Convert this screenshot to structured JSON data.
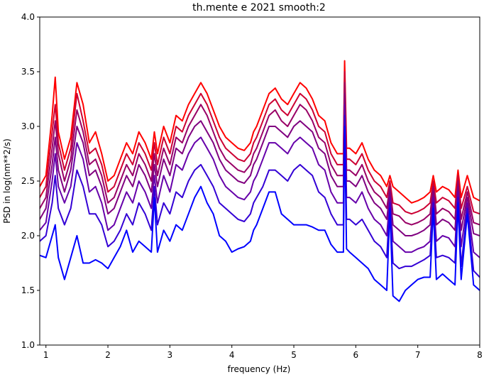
{
  "chart_data": {
    "type": "line",
    "title": "th.mente e 2021 smooth:2",
    "xlabel": "frequency (Hz)",
    "ylabel": "PSD in log(nm**2/s)",
    "xlim": [
      0.9,
      8.0
    ],
    "ylim": [
      1.0,
      4.0
    ],
    "xticks": [
      1,
      2,
      3,
      4,
      5,
      6,
      7,
      8
    ],
    "yticks": [
      1.0,
      1.5,
      2.0,
      2.5,
      3.0,
      3.5,
      4.0
    ],
    "grid": false,
    "legend": "none",
    "x": [
      0.9,
      1.0,
      1.1,
      1.15,
      1.2,
      1.3,
      1.4,
      1.5,
      1.6,
      1.7,
      1.8,
      1.9,
      2.0,
      2.1,
      2.2,
      2.3,
      2.4,
      2.5,
      2.6,
      2.7,
      2.75,
      2.8,
      2.9,
      3.0,
      3.1,
      3.2,
      3.3,
      3.4,
      3.5,
      3.6,
      3.7,
      3.8,
      3.9,
      4.0,
      4.1,
      4.2,
      4.3,
      4.35,
      4.4,
      4.5,
      4.6,
      4.7,
      4.8,
      4.9,
      5.0,
      5.1,
      5.2,
      5.3,
      5.4,
      5.5,
      5.6,
      5.7,
      5.8,
      5.82,
      5.85,
      5.9,
      6.0,
      6.1,
      6.2,
      6.3,
      6.4,
      6.5,
      6.55,
      6.6,
      6.7,
      6.8,
      6.9,
      7.0,
      7.1,
      7.2,
      7.25,
      7.3,
      7.4,
      7.5,
      7.6,
      7.65,
      7.7,
      7.8,
      7.9,
      8.0
    ],
    "series": [
      {
        "color": "#ff0000",
        "values": [
          2.45,
          2.55,
          3.1,
          3.45,
          2.95,
          2.7,
          2.9,
          3.4,
          3.2,
          2.85,
          2.95,
          2.75,
          2.5,
          2.55,
          2.7,
          2.85,
          2.75,
          2.95,
          2.85,
          2.7,
          2.95,
          2.75,
          3.0,
          2.85,
          3.1,
          3.05,
          3.2,
          3.3,
          3.4,
          3.3,
          3.15,
          3.0,
          2.9,
          2.85,
          2.8,
          2.78,
          2.85,
          2.95,
          3.0,
          3.15,
          3.3,
          3.35,
          3.25,
          3.2,
          3.3,
          3.4,
          3.35,
          3.25,
          3.1,
          3.05,
          2.85,
          2.75,
          2.75,
          3.6,
          2.8,
          2.8,
          2.75,
          2.85,
          2.7,
          2.6,
          2.55,
          2.45,
          2.55,
          2.45,
          2.4,
          2.35,
          2.3,
          2.32,
          2.35,
          2.4,
          2.55,
          2.4,
          2.45,
          2.42,
          2.35,
          2.6,
          2.35,
          2.55,
          2.35,
          2.32
        ]
      },
      {
        "color": "#cc0033",
        "values": [
          2.35,
          2.45,
          2.95,
          3.2,
          2.85,
          2.6,
          2.8,
          3.3,
          3.05,
          2.75,
          2.8,
          2.65,
          2.4,
          2.45,
          2.6,
          2.75,
          2.65,
          2.85,
          2.75,
          2.6,
          2.85,
          2.65,
          2.9,
          2.75,
          3.0,
          2.95,
          3.1,
          3.2,
          3.3,
          3.2,
          3.05,
          2.9,
          2.8,
          2.75,
          2.7,
          2.68,
          2.75,
          2.85,
          2.9,
          3.05,
          3.2,
          3.25,
          3.15,
          3.1,
          3.2,
          3.3,
          3.25,
          3.15,
          3.0,
          2.95,
          2.75,
          2.65,
          2.65,
          3.5,
          2.7,
          2.7,
          2.65,
          2.75,
          2.6,
          2.5,
          2.45,
          2.35,
          2.5,
          2.3,
          2.28,
          2.22,
          2.2,
          2.22,
          2.25,
          2.3,
          2.5,
          2.3,
          2.35,
          2.32,
          2.25,
          2.55,
          2.25,
          2.45,
          2.22,
          2.2
        ]
      },
      {
        "color": "#990066",
        "values": [
          2.25,
          2.35,
          2.8,
          3.05,
          2.75,
          2.5,
          2.7,
          3.15,
          2.95,
          2.65,
          2.7,
          2.55,
          2.3,
          2.35,
          2.5,
          2.65,
          2.55,
          2.75,
          2.65,
          2.5,
          2.75,
          2.55,
          2.8,
          2.65,
          2.9,
          2.85,
          3.0,
          3.1,
          3.2,
          3.1,
          2.95,
          2.8,
          2.7,
          2.65,
          2.6,
          2.58,
          2.65,
          2.75,
          2.8,
          2.95,
          3.1,
          3.15,
          3.05,
          3.0,
          3.1,
          3.2,
          3.15,
          3.05,
          2.9,
          2.85,
          2.65,
          2.55,
          2.55,
          3.4,
          2.6,
          2.6,
          2.55,
          2.65,
          2.5,
          2.4,
          2.35,
          2.25,
          2.45,
          2.2,
          2.18,
          2.12,
          2.1,
          2.12,
          2.15,
          2.2,
          2.45,
          2.2,
          2.25,
          2.22,
          2.15,
          2.5,
          2.15,
          2.4,
          2.12,
          2.1
        ]
      },
      {
        "color": "#800080",
        "values": [
          2.15,
          2.25,
          2.65,
          2.9,
          2.6,
          2.4,
          2.6,
          3.0,
          2.85,
          2.55,
          2.6,
          2.45,
          2.2,
          2.25,
          2.4,
          2.55,
          2.45,
          2.65,
          2.55,
          2.4,
          2.65,
          2.45,
          2.7,
          2.55,
          2.8,
          2.75,
          2.9,
          3.0,
          3.05,
          2.95,
          2.85,
          2.7,
          2.6,
          2.55,
          2.5,
          2.48,
          2.55,
          2.65,
          2.7,
          2.85,
          3.0,
          3.0,
          2.95,
          2.9,
          3.0,
          3.05,
          3.0,
          2.95,
          2.8,
          2.75,
          2.55,
          2.45,
          2.45,
          3.3,
          2.5,
          2.5,
          2.45,
          2.55,
          2.4,
          2.3,
          2.25,
          2.15,
          2.4,
          2.1,
          2.05,
          2.0,
          2.0,
          2.02,
          2.05,
          2.1,
          2.4,
          2.1,
          2.15,
          2.12,
          2.05,
          2.45,
          2.05,
          2.35,
          2.02,
          2.0
        ]
      },
      {
        "color": "#6600aa",
        "values": [
          2.05,
          2.12,
          2.5,
          2.75,
          2.45,
          2.3,
          2.45,
          2.85,
          2.7,
          2.4,
          2.45,
          2.3,
          2.05,
          2.1,
          2.25,
          2.4,
          2.3,
          2.5,
          2.4,
          2.25,
          2.55,
          2.3,
          2.55,
          2.4,
          2.65,
          2.6,
          2.75,
          2.85,
          2.9,
          2.8,
          2.7,
          2.55,
          2.45,
          2.4,
          2.35,
          2.33,
          2.4,
          2.5,
          2.55,
          2.7,
          2.85,
          2.85,
          2.8,
          2.75,
          2.85,
          2.9,
          2.85,
          2.8,
          2.65,
          2.6,
          2.4,
          2.3,
          2.3,
          3.2,
          2.35,
          2.35,
          2.3,
          2.4,
          2.25,
          2.15,
          2.1,
          2.0,
          2.35,
          1.95,
          1.9,
          1.85,
          1.85,
          1.88,
          1.9,
          1.95,
          2.35,
          1.95,
          2.0,
          1.98,
          1.9,
          2.4,
          1.9,
          2.3,
          1.85,
          1.8
        ]
      },
      {
        "color": "#3300d5",
        "values": [
          1.95,
          2.0,
          2.3,
          2.55,
          2.25,
          2.1,
          2.25,
          2.6,
          2.45,
          2.2,
          2.2,
          2.1,
          1.9,
          1.95,
          2.05,
          2.2,
          2.1,
          2.3,
          2.2,
          2.05,
          2.45,
          2.1,
          2.3,
          2.2,
          2.4,
          2.35,
          2.5,
          2.6,
          2.65,
          2.55,
          2.45,
          2.3,
          2.25,
          2.2,
          2.15,
          2.13,
          2.2,
          2.3,
          2.35,
          2.45,
          2.6,
          2.6,
          2.55,
          2.5,
          2.6,
          2.65,
          2.6,
          2.55,
          2.4,
          2.35,
          2.2,
          2.1,
          2.1,
          3.1,
          2.15,
          2.15,
          2.1,
          2.15,
          2.05,
          1.95,
          1.9,
          1.8,
          2.3,
          1.75,
          1.7,
          1.72,
          1.72,
          1.75,
          1.78,
          1.82,
          2.3,
          1.8,
          1.82,
          1.8,
          1.75,
          2.35,
          1.72,
          2.25,
          1.68,
          1.62
        ]
      },
      {
        "color": "#0000ff",
        "values": [
          1.82,
          1.8,
          2.0,
          2.1,
          1.8,
          1.6,
          1.8,
          2.0,
          1.75,
          1.75,
          1.78,
          1.75,
          1.7,
          1.8,
          1.9,
          2.05,
          1.85,
          1.95,
          1.9,
          1.85,
          2.35,
          1.85,
          2.05,
          1.95,
          2.1,
          2.05,
          2.2,
          2.35,
          2.45,
          2.3,
          2.2,
          2.0,
          1.95,
          1.85,
          1.88,
          1.9,
          1.95,
          2.05,
          2.1,
          2.25,
          2.4,
          2.4,
          2.2,
          2.15,
          2.1,
          2.1,
          2.1,
          2.08,
          2.05,
          2.05,
          1.92,
          1.85,
          1.85,
          3.0,
          1.88,
          1.85,
          1.8,
          1.75,
          1.7,
          1.6,
          1.55,
          1.5,
          2.25,
          1.45,
          1.4,
          1.5,
          1.55,
          1.6,
          1.62,
          1.62,
          2.25,
          1.6,
          1.65,
          1.6,
          1.55,
          2.3,
          1.6,
          2.2,
          1.55,
          1.5
        ]
      }
    ]
  }
}
